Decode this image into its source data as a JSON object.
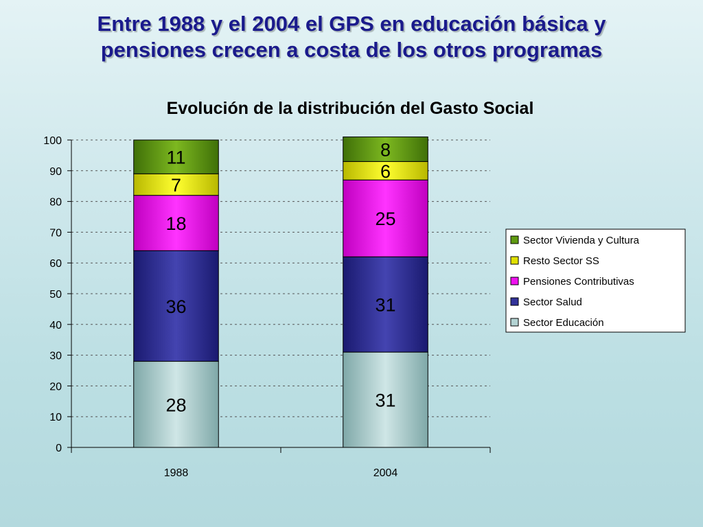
{
  "slide": {
    "title_line1": "Entre 1988 y el 2004 el GPS en educación básica y",
    "title_line2": "pensiones crecen a costa de los otros programas"
  },
  "chart_data": {
    "type": "bar",
    "stacked": true,
    "title": "Evolución de la distribución del Gasto Social",
    "xlabel": "",
    "ylabel": "",
    "ylim": [
      0,
      100
    ],
    "yticks": [
      0,
      10,
      20,
      30,
      40,
      50,
      60,
      70,
      80,
      90,
      100
    ],
    "grid": true,
    "legend_position": "right",
    "categories": [
      "1988",
      "2004"
    ],
    "series": [
      {
        "name": "Sector Educación",
        "values": [
          28,
          31
        ],
        "color": "#b3d3d3",
        "label_color": "#000000"
      },
      {
        "name": "Sector Salud",
        "values": [
          36,
          31
        ],
        "color": "#33339a",
        "label_color": "#000000"
      },
      {
        "name": "Pensiones Contributivas",
        "values": [
          18,
          25
        ],
        "color": "#ee11ee",
        "label_color": "#000000"
      },
      {
        "name": "Resto Sector SS",
        "values": [
          7,
          6
        ],
        "color": "#e0e000",
        "label_color": "#000000"
      },
      {
        "name": "Sector Vivienda y Cultura",
        "values": [
          11,
          8
        ],
        "color": "#5f9a10",
        "label_color": "#000000"
      }
    ],
    "legend_order": [
      "Sector Vivienda y Cultura",
      "Resto Sector SS",
      "Pensiones Contributivas",
      "Sector Salud",
      "Sector Educación"
    ]
  }
}
